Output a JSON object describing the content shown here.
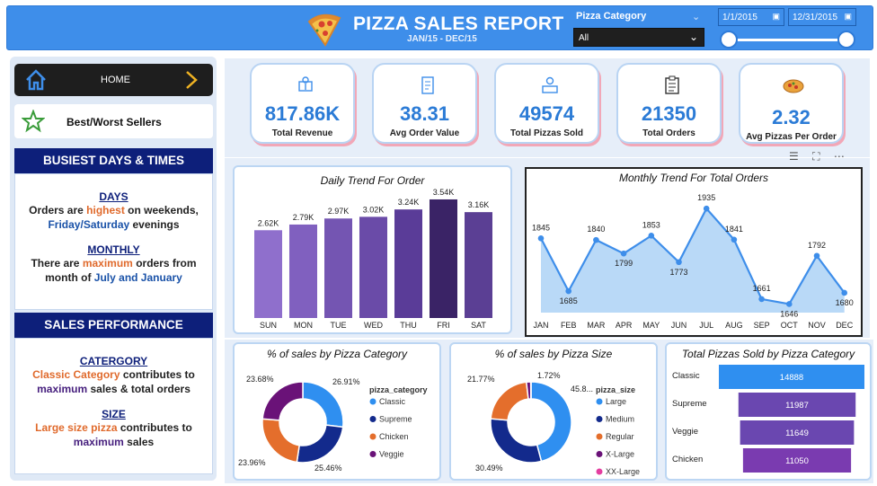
{
  "header": {
    "title": "PIZZA SALES REPORT",
    "subtitle": "JAN/15 - DEC/15",
    "category_label": "Pizza Category",
    "category_value": "All",
    "date_start": "1/1/2015",
    "date_end": "12/31/2015"
  },
  "sidebar": {
    "home_label": "HOME",
    "best_worst_label": "Best/Worst Sellers",
    "busiest": {
      "heading": "BUSIEST DAYS & TIMES",
      "days_title": "DAYS",
      "days_line1_a": "Orders are ",
      "days_line1_b": "highest",
      "days_line1_c": " on weekends,",
      "days_line2_a": "Friday/Saturday",
      "days_line2_b": " evenings",
      "monthly_title": "MONTHLY",
      "monthly_line1_a": "There are ",
      "monthly_line1_b": "maximum",
      "monthly_line1_c": " orders from",
      "monthly_line2_a": "month of ",
      "monthly_line2_b": "July and January"
    },
    "sales": {
      "heading": "SALES PERFORMANCE",
      "cat_title": "CATERGORY",
      "cat_line1_a": "Classic Category",
      "cat_line1_b": " contributes to",
      "cat_line2_a": "maximum",
      "cat_line2_b": " sales & total orders",
      "size_title": "SIZE",
      "size_line1_a": "Large size pizza",
      "size_line1_b": " contributes to",
      "size_line2_a": "maximum",
      "size_line2_b": " sales"
    }
  },
  "kpis": [
    {
      "value": "817.86K",
      "label": "Total Revenue",
      "icon": "revenue-icon"
    },
    {
      "value": "38.31",
      "label": "Avg Order Value",
      "icon": "receipt-icon"
    },
    {
      "value": "49574",
      "label": "Total Pizzas Sold",
      "icon": "delivery-icon"
    },
    {
      "value": "21350",
      "label": "Total Orders",
      "icon": "clipboard-icon"
    },
    {
      "value": "2.32",
      "label": "Avg Pizzas Per Order",
      "icon": "pizza-icon"
    }
  ],
  "colors": {
    "accent": "#3e8eea",
    "navy": "#0d1f7a",
    "kpi_value": "#2b7bd6",
    "bar_purple": "#6f4aa8",
    "line_blue": "#3e8eea",
    "area_fill": "#b9d9f7"
  },
  "chart_data": [
    {
      "type": "bar",
      "title": "Daily Trend For Order",
      "categories": [
        "SUN",
        "MON",
        "TUE",
        "WED",
        "THU",
        "FRI",
        "SAT"
      ],
      "values": [
        2620,
        2790,
        2970,
        3020,
        3240,
        3540,
        3160
      ],
      "labels": [
        "2.62K",
        "2.79K",
        "2.97K",
        "3.02K",
        "3.24K",
        "3.54K",
        "3.16K"
      ],
      "ylim": [
        0,
        3700
      ]
    },
    {
      "type": "area",
      "title": "Monthly Trend For Total Orders",
      "categories": [
        "JAN",
        "FEB",
        "MAR",
        "APR",
        "MAY",
        "JUN",
        "JUL",
        "AUG",
        "SEP",
        "OCT",
        "NOV",
        "DEC"
      ],
      "values": [
        1845,
        1685,
        1840,
        1799,
        1853,
        1773,
        1935,
        1841,
        1661,
        1646,
        1792,
        1680
      ],
      "ylim": [
        1620,
        1960
      ]
    },
    {
      "type": "pie",
      "title": "% of sales by Pizza Category",
      "legend_title": "pizza_category",
      "categories": [
        "Classic",
        "Supreme",
        "Chicken",
        "Veggie"
      ],
      "values": [
        26.91,
        25.46,
        23.96,
        23.68
      ],
      "labels": [
        "26.91%",
        "25.46%",
        "23.96%",
        "23.68%"
      ],
      "colors": [
        "#2f8ff0",
        "#132a8c",
        "#e46e2c",
        "#6a1278"
      ]
    },
    {
      "type": "pie",
      "title": "% of sales by Pizza Size",
      "legend_title": "pizza_size",
      "categories": [
        "Large",
        "Medium",
        "Regular",
        "X-Large",
        "XX-Large"
      ],
      "values": [
        45.89,
        30.49,
        21.77,
        1.72,
        0.12
      ],
      "labels": [
        "45.8...",
        "30.49%",
        "21.77%",
        "1.72%",
        ""
      ],
      "colors": [
        "#2f8ff0",
        "#132a8c",
        "#e46e2c",
        "#6a1278",
        "#e43ea0"
      ]
    },
    {
      "type": "bar",
      "title": "Total Pizzas Sold by Pizza Category",
      "categories": [
        "Classic",
        "Supreme",
        "Veggie",
        "Chicken"
      ],
      "values": [
        14888,
        11987,
        11649,
        11050
      ],
      "labels": [
        "14888",
        "11987",
        "11649",
        "11050"
      ],
      "colors": [
        "#2f8ff0",
        "#6a47b0",
        "#6a47b0",
        "#7a3bb0"
      ]
    }
  ]
}
